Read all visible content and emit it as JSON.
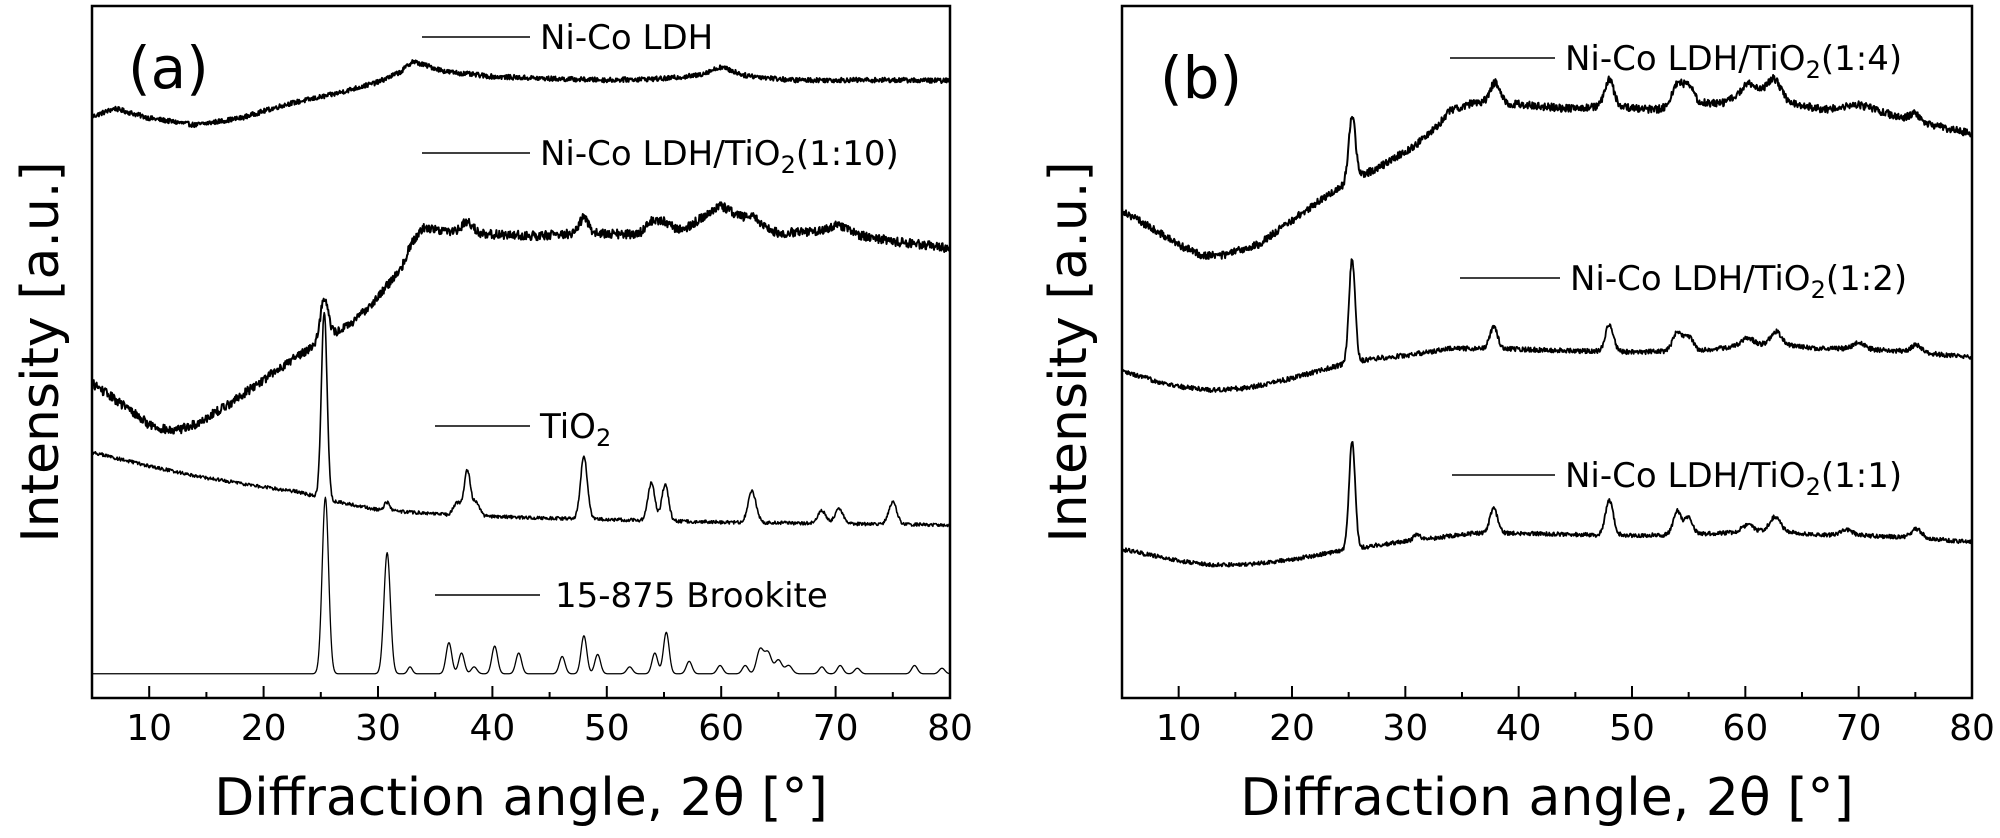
{
  "chart_data": [
    {
      "panel_label": "(a)",
      "type": "line",
      "xlabel": "Diffraction angle, 2θ [°]",
      "ylabel": "Intensity [a.u.]",
      "xlim": [
        5,
        80
      ],
      "xticks": [
        10,
        20,
        30,
        40,
        50,
        60,
        70,
        80
      ],
      "x_tick_labels": [
        "10",
        "20",
        "30",
        "40",
        "50",
        "60",
        "70",
        "80"
      ],
      "y_ticks": "none",
      "series": [
        {
          "name": "Ni-Co LDH",
          "legend_base": "Ni-Co LDH",
          "legend_sub": "",
          "legend_tail": "",
          "baseline": [
            [
              5,
              0.84
            ],
            [
              7,
              0.852
            ],
            [
              10,
              0.838
            ],
            [
              14,
              0.828
            ],
            [
              18,
              0.838
            ],
            [
              22,
              0.858
            ],
            [
              26,
              0.872
            ],
            [
              30,
              0.89
            ],
            [
              32,
              0.905
            ],
            [
              33,
              0.92
            ],
            [
              34,
              0.915
            ],
            [
              36,
              0.905
            ],
            [
              40,
              0.898
            ],
            [
              45,
              0.895
            ],
            [
              50,
              0.893
            ],
            [
              55,
              0.895
            ],
            [
              58,
              0.9
            ],
            [
              60,
              0.912
            ],
            [
              62,
              0.9
            ],
            [
              66,
              0.893
            ],
            [
              70,
              0.893
            ],
            [
              75,
              0.893
            ],
            [
              80,
              0.892
            ]
          ],
          "peaks": [],
          "noise": 0.0035,
          "stroke": 2.0
        },
        {
          "name": "Ni-Co LDH/TiO2(1:10)",
          "legend_base": "Ni-Co LDH/TiO",
          "legend_sub": "2",
          "legend_tail": "(1:10)",
          "baseline": [
            [
              5,
              0.455
            ],
            [
              8,
              0.42
            ],
            [
              10,
              0.395
            ],
            [
              12,
              0.385
            ],
            [
              14,
              0.395
            ],
            [
              17,
              0.425
            ],
            [
              20,
              0.46
            ],
            [
              23,
              0.495
            ],
            [
              25,
              0.515
            ],
            [
              28,
              0.545
            ],
            [
              30,
              0.58
            ],
            [
              32,
              0.62
            ],
            [
              33,
              0.66
            ],
            [
              34,
              0.68
            ],
            [
              36,
              0.675
            ],
            [
              40,
              0.67
            ],
            [
              44,
              0.668
            ],
            [
              48,
              0.672
            ],
            [
              52,
              0.67
            ],
            [
              55,
              0.675
            ],
            [
              57,
              0.68
            ],
            [
              60,
              0.712
            ],
            [
              62,
              0.69
            ],
            [
              65,
              0.672
            ],
            [
              70,
              0.675
            ],
            [
              75,
              0.66
            ],
            [
              80,
              0.65
            ]
          ],
          "peaks": [
            [
              25.3,
              0.06,
              0.35
            ],
            [
              37.8,
              0.015,
              0.5
            ],
            [
              48.0,
              0.022,
              0.4
            ],
            [
              54.0,
              0.015,
              0.5
            ],
            [
              55.0,
              0.012,
              0.5
            ],
            [
              62.7,
              0.012,
              0.6
            ],
            [
              70.2,
              0.008,
              0.8
            ]
          ],
          "noise": 0.0065,
          "stroke": 2.0
        },
        {
          "name": "TiO2",
          "legend_base": "TiO",
          "legend_sub": "2",
          "legend_tail": "",
          "baseline": [
            [
              5,
              0.355
            ],
            [
              10,
              0.335
            ],
            [
              15,
              0.318
            ],
            [
              20,
              0.305
            ],
            [
              23,
              0.298
            ],
            [
              26,
              0.285
            ],
            [
              30,
              0.272
            ],
            [
              35,
              0.266
            ],
            [
              40,
              0.262
            ],
            [
              50,
              0.258
            ],
            [
              60,
              0.254
            ],
            [
              70,
              0.252
            ],
            [
              80,
              0.25
            ]
          ],
          "peaks": [
            [
              25.3,
              0.27,
              0.25
            ],
            [
              30.8,
              0.012,
              0.25
            ],
            [
              36.9,
              0.018,
              0.3
            ],
            [
              37.8,
              0.065,
              0.28
            ],
            [
              38.6,
              0.02,
              0.3
            ],
            [
              48.0,
              0.09,
              0.3
            ],
            [
              53.9,
              0.055,
              0.3
            ],
            [
              55.1,
              0.052,
              0.3
            ],
            [
              62.7,
              0.045,
              0.35
            ],
            [
              68.8,
              0.018,
              0.35
            ],
            [
              70.3,
              0.022,
              0.35
            ],
            [
              75.0,
              0.032,
              0.35
            ]
          ],
          "noise": 0.0025,
          "stroke": 1.6
        },
        {
          "name": "15-875 Brookite",
          "legend_base": "15-875 Brookite",
          "legend_sub": "",
          "legend_tail": "",
          "baseline": [
            [
              5,
              0.035
            ],
            [
              80,
              0.035
            ]
          ],
          "peaks": [
            [
              25.4,
              0.255,
              0.28
            ],
            [
              30.8,
              0.175,
              0.28
            ],
            [
              32.8,
              0.01,
              0.2
            ],
            [
              36.2,
              0.045,
              0.25
            ],
            [
              37.3,
              0.03,
              0.25
            ],
            [
              38.4,
              0.01,
              0.25
            ],
            [
              40.2,
              0.04,
              0.25
            ],
            [
              42.3,
              0.03,
              0.25
            ],
            [
              46.1,
              0.025,
              0.25
            ],
            [
              48.0,
              0.055,
              0.25
            ],
            [
              49.2,
              0.028,
              0.25
            ],
            [
              52.0,
              0.01,
              0.25
            ],
            [
              54.2,
              0.03,
              0.25
            ],
            [
              55.2,
              0.06,
              0.25
            ],
            [
              57.2,
              0.018,
              0.25
            ],
            [
              59.9,
              0.012,
              0.25
            ],
            [
              62.1,
              0.012,
              0.25
            ],
            [
              63.4,
              0.035,
              0.3
            ],
            [
              64.1,
              0.03,
              0.3
            ],
            [
              65.0,
              0.02,
              0.3
            ],
            [
              65.9,
              0.012,
              0.3
            ],
            [
              68.8,
              0.01,
              0.25
            ],
            [
              70.4,
              0.012,
              0.25
            ],
            [
              71.9,
              0.008,
              0.25
            ],
            [
              76.9,
              0.012,
              0.25
            ],
            [
              79.3,
              0.008,
              0.25
            ]
          ],
          "noise": 0,
          "stroke": 1.3
        }
      ],
      "legend_placement": "inline, left of each label above its curve"
    },
    {
      "panel_label": "(b)",
      "type": "line",
      "xlabel": "Diffraction angle, 2θ [°]",
      "ylabel": "Intensity [a.u.]",
      "xlim": [
        5,
        80
      ],
      "xticks": [
        10,
        20,
        30,
        40,
        50,
        60,
        70,
        80
      ],
      "x_tick_labels": [
        "10",
        "20",
        "30",
        "40",
        "50",
        "60",
        "70",
        "80"
      ],
      "y_ticks": "none",
      "series": [
        {
          "name": "Ni-Co LDH/TiO2(1:4)",
          "legend_base": "Ni-Co LDH/TiO",
          "legend_sub": "2",
          "legend_tail": "(1:4)",
          "baseline": [
            [
              5,
              0.705
            ],
            [
              8,
              0.675
            ],
            [
              10,
              0.655
            ],
            [
              12,
              0.64
            ],
            [
              14,
              0.64
            ],
            [
              17,
              0.655
            ],
            [
              20,
              0.69
            ],
            [
              23,
              0.725
            ],
            [
              25,
              0.745
            ],
            [
              28,
              0.77
            ],
            [
              31,
              0.8
            ],
            [
              33,
              0.83
            ],
            [
              34,
              0.85
            ],
            [
              36,
              0.86
            ],
            [
              40,
              0.858
            ],
            [
              44,
              0.852
            ],
            [
              48,
              0.855
            ],
            [
              52,
              0.85
            ],
            [
              55,
              0.86
            ],
            [
              58,
              0.86
            ],
            [
              60,
              0.875
            ],
            [
              62,
              0.878
            ],
            [
              64,
              0.86
            ],
            [
              67,
              0.85
            ],
            [
              70,
              0.858
            ],
            [
              73,
              0.842
            ],
            [
              76,
              0.83
            ],
            [
              80,
              0.815
            ]
          ],
          "peaks": [
            [
              25.3,
              0.095,
              0.3
            ],
            [
              37.9,
              0.03,
              0.45
            ],
            [
              48.0,
              0.038,
              0.4
            ],
            [
              54.0,
              0.03,
              0.45
            ],
            [
              55.0,
              0.025,
              0.45
            ],
            [
              60.4,
              0.012,
              0.6
            ],
            [
              62.6,
              0.022,
              0.5
            ],
            [
              75.0,
              0.01,
              0.5
            ]
          ],
          "noise": 0.0055,
          "stroke": 2.0
        },
        {
          "name": "Ni-Co LDH/TiO2(1:2)",
          "legend_base": "Ni-Co LDH/TiO",
          "legend_sub": "2",
          "legend_tail": "(1:2)",
          "baseline": [
            [
              5,
              0.472
            ],
            [
              8,
              0.458
            ],
            [
              10,
              0.45
            ],
            [
              13,
              0.445
            ],
            [
              16,
              0.448
            ],
            [
              20,
              0.462
            ],
            [
              24,
              0.48
            ],
            [
              27,
              0.49
            ],
            [
              30,
              0.495
            ],
            [
              34,
              0.505
            ],
            [
              38,
              0.505
            ],
            [
              44,
              0.502
            ],
            [
              50,
              0.5
            ],
            [
              56,
              0.502
            ],
            [
              60,
              0.51
            ],
            [
              63,
              0.512
            ],
            [
              66,
              0.505
            ],
            [
              70,
              0.505
            ],
            [
              75,
              0.5
            ],
            [
              80,
              0.492
            ]
          ],
          "peaks": [
            [
              25.3,
              0.15,
              0.27
            ],
            [
              37.8,
              0.03,
              0.35
            ],
            [
              48.0,
              0.04,
              0.35
            ],
            [
              54.0,
              0.028,
              0.4
            ],
            [
              55.0,
              0.02,
              0.4
            ],
            [
              60.2,
              0.01,
              0.5
            ],
            [
              62.7,
              0.018,
              0.45
            ],
            [
              70.0,
              0.008,
              0.5
            ],
            [
              75.1,
              0.01,
              0.5
            ]
          ],
          "noise": 0.0035,
          "stroke": 1.8
        },
        {
          "name": "Ni-Co LDH/TiO2(1:1)",
          "legend_base": "Ni-Co LDH/TiO",
          "legend_sub": "2",
          "legend_tail": "(1:1)",
          "baseline": [
            [
              5,
              0.215
            ],
            [
              8,
              0.205
            ],
            [
              10,
              0.198
            ],
            [
              13,
              0.192
            ],
            [
              16,
              0.193
            ],
            [
              20,
              0.2
            ],
            [
              24,
              0.212
            ],
            [
              28,
              0.222
            ],
            [
              32,
              0.23
            ],
            [
              36,
              0.238
            ],
            [
              40,
              0.238
            ],
            [
              45,
              0.236
            ],
            [
              50,
              0.235
            ],
            [
              55,
              0.236
            ],
            [
              60,
              0.24
            ],
            [
              63,
              0.242
            ],
            [
              66,
              0.236
            ],
            [
              70,
              0.235
            ],
            [
              75,
              0.232
            ],
            [
              80,
              0.225
            ]
          ],
          "peaks": [
            [
              25.3,
              0.155,
              0.27
            ],
            [
              31.0,
              0.008,
              0.3
            ],
            [
              37.8,
              0.035,
              0.35
            ],
            [
              48.0,
              0.05,
              0.35
            ],
            [
              54.0,
              0.035,
              0.35
            ],
            [
              55.0,
              0.025,
              0.35
            ],
            [
              60.2,
              0.01,
              0.5
            ],
            [
              62.6,
              0.02,
              0.45
            ],
            [
              68.9,
              0.008,
              0.5
            ],
            [
              75.1,
              0.012,
              0.45
            ]
          ],
          "noise": 0.003,
          "stroke": 1.8
        }
      ],
      "legend_placement": "inline, left of each label above its curve"
    }
  ]
}
